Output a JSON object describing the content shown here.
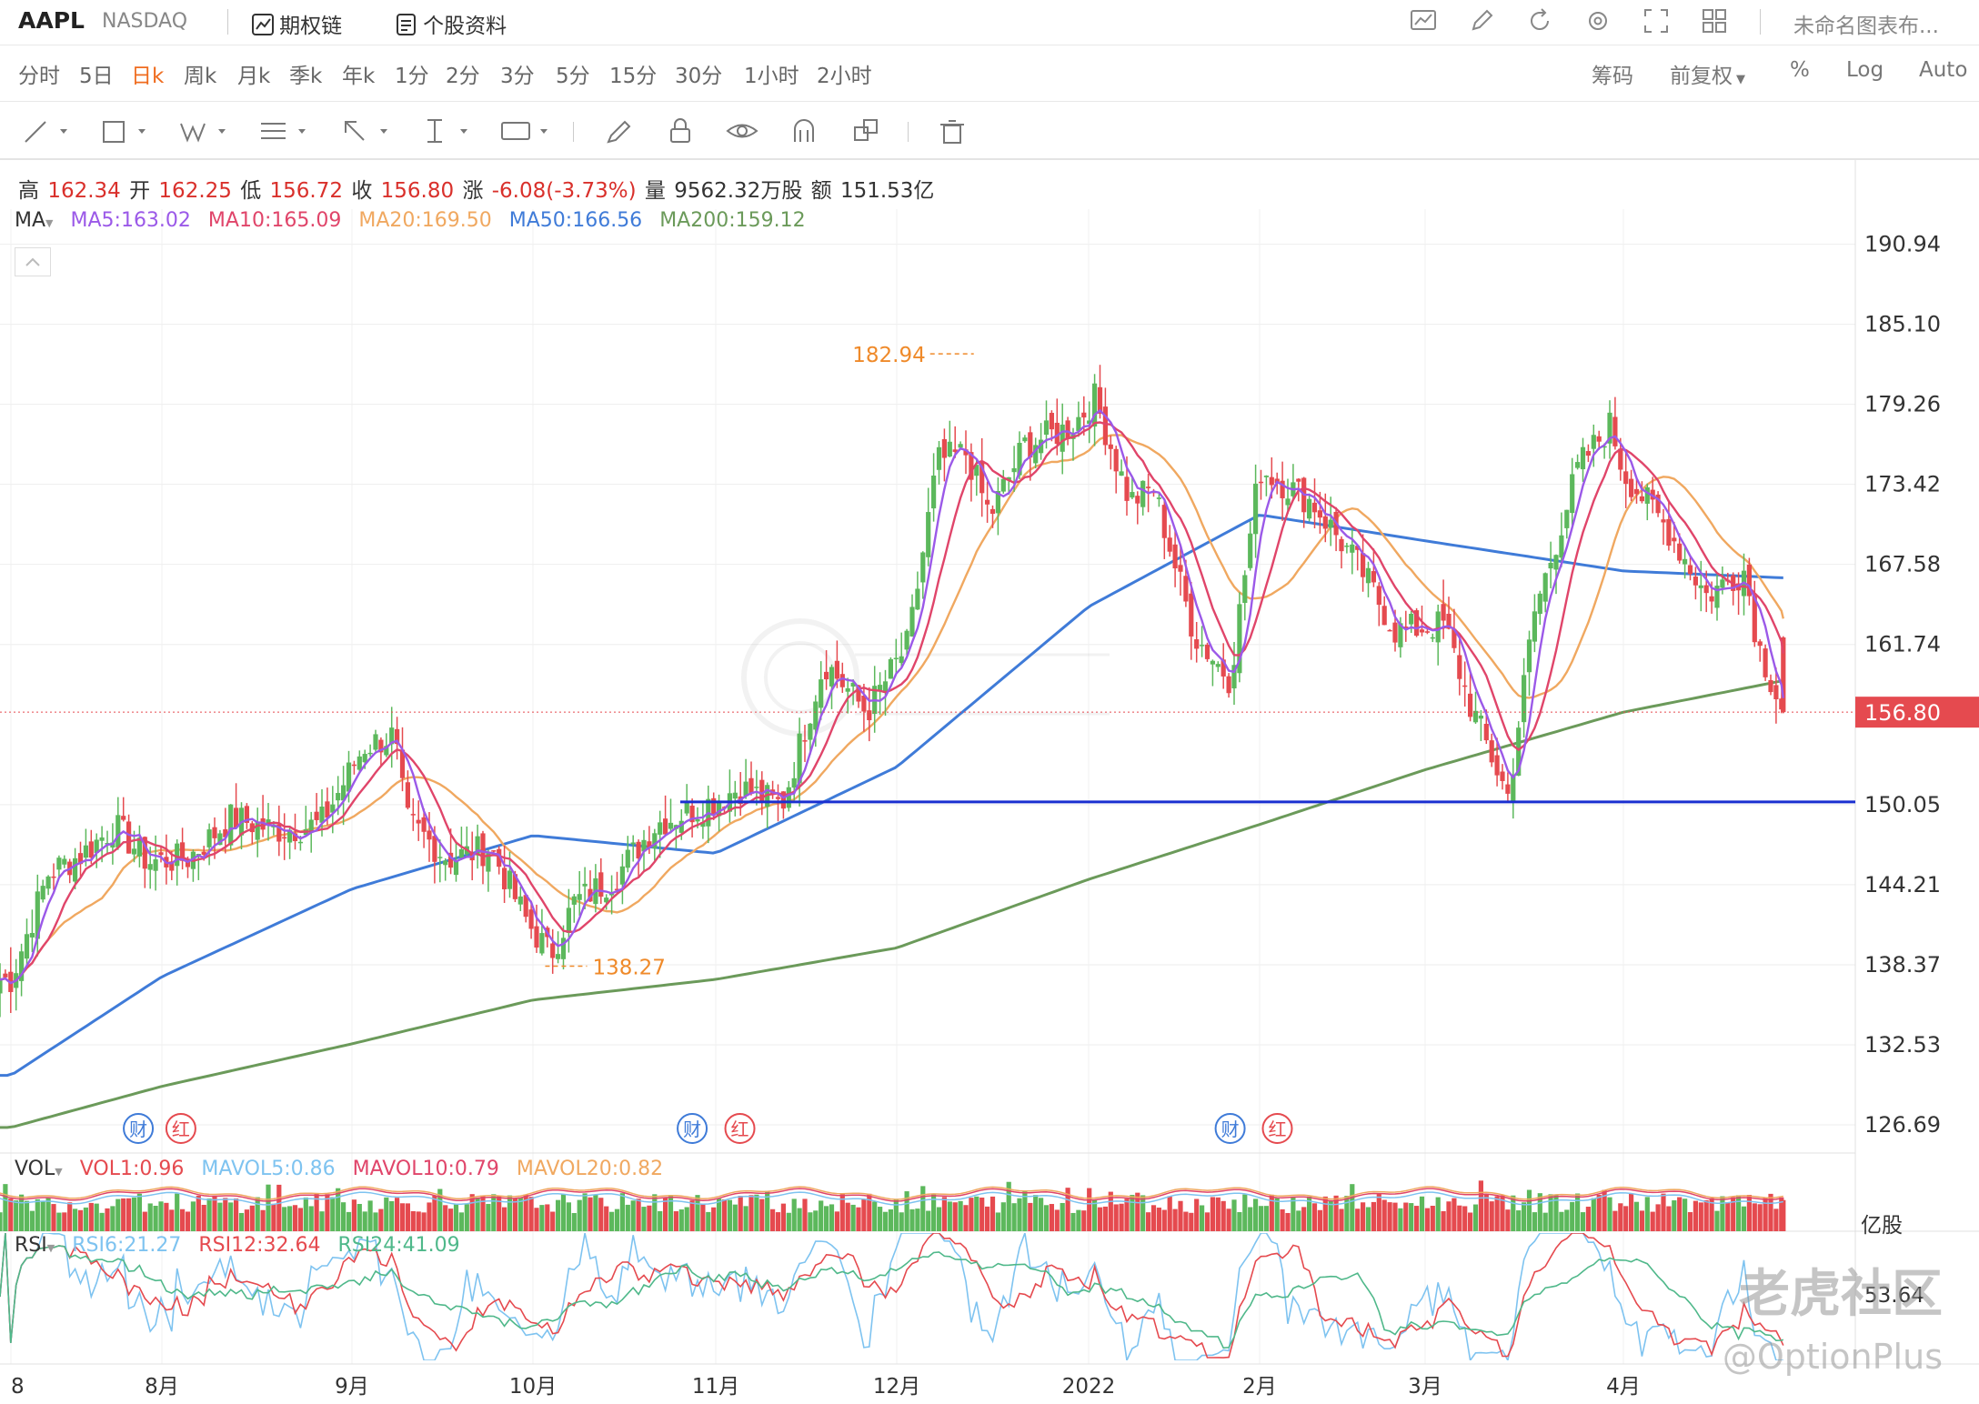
{
  "header": {
    "ticker": "AAPL",
    "exchange": "NASDAQ",
    "link_options": "期权链",
    "link_profile": "个股资料",
    "chart_name": "未命名图表布..."
  },
  "periods": [
    "分时",
    "5日",
    "日k",
    "周k",
    "月k",
    "季k",
    "年k",
    "1分",
    "2分",
    "3分",
    "5分",
    "15分",
    "30分",
    "1小时",
    "2小时"
  ],
  "active_period": "日k",
  "right_options": {
    "chips": "筹码",
    "adjust": "前复权",
    "percent": "%",
    "log": "Log",
    "auto": "Auto"
  },
  "ohlc": {
    "high_label": "高",
    "high": "162.34",
    "open_label": "开",
    "open": "162.25",
    "low_label": "低",
    "low": "156.72",
    "close_label": "收",
    "close": "156.80",
    "change_label": "涨",
    "change": "-6.08(-3.73%)",
    "volume_label": "量",
    "volume": "9562.32万股",
    "amount_label": "额",
    "amount": "151.53亿"
  },
  "ma_legend": {
    "title": "MA",
    "ma5": "MA5:163.02",
    "ma10": "MA10:165.09",
    "ma20": "MA20:169.50",
    "ma50": "MA50:166.56",
    "ma200": "MA200:159.12"
  },
  "vol_legend": {
    "title": "VOL",
    "vol1": "VOL1:0.96",
    "mavol5": "MAVOL5:0.86",
    "mavol10": "MAVOL10:0.79",
    "mavol20": "MAVOL20:0.82",
    "unit": "亿股"
  },
  "rsi_legend": {
    "title": "RSI",
    "rsi6": "RSI6:21.27",
    "rsi12": "RSI12:32.64",
    "rsi24": "RSI24:41.09",
    "axis_value": "53.64"
  },
  "watermarks": {
    "cn": "老虎社区",
    "handle": "@OptionPlus"
  },
  "colors": {
    "up": "#5cb85c",
    "down": "#e54a4f",
    "ma5": "#9b59e8",
    "ma10": "#e0456a",
    "ma20": "#f0a860",
    "ma50": "#3f7bd8",
    "ma200": "#6b9a5a",
    "hline": "#1a2fd0",
    "annot": "#ef8a2a",
    "last_price": "#e54a4f"
  },
  "event_markers": [
    {
      "date": "2021-07-28",
      "label": "财"
    },
    {
      "date": "2021-08-05",
      "label": "红"
    },
    {
      "date": "2021-10-28",
      "label": "财"
    },
    {
      "date": "2021-11-05",
      "label": "红"
    },
    {
      "date": "2022-01-27",
      "label": "财"
    },
    {
      "date": "2022-02-04",
      "label": "红"
    }
  ],
  "chart_data": {
    "type": "candlestick",
    "ylim": [
      124.5,
      193.5
    ],
    "y_ticks": [
      "190.94",
      "185.10",
      "179.26",
      "173.42",
      "167.58",
      "161.74",
      "156.80",
      "150.05",
      "144.21",
      "138.37",
      "132.53",
      "126.69"
    ],
    "x_ticks": [
      "8",
      "8月",
      "9月",
      "10月",
      "11月",
      "12月",
      "2022",
      "2月",
      "3月",
      "4月"
    ],
    "x_tick_dates": [
      "2021-07-01",
      "2021-08-02",
      "2021-09-01",
      "2021-10-01",
      "2021-11-01",
      "2021-12-01",
      "2022-01-03",
      "2022-02-01",
      "2022-03-01",
      "2022-04-01"
    ],
    "last_price": "156.80",
    "support_line": 150.25,
    "annotations": [
      {
        "date": "2021-12-13",
        "value": 182.94,
        "label": "182.94"
      },
      {
        "date": "2021-10-04",
        "value": 138.27,
        "label": "138.27"
      }
    ],
    "close": [
      {
        "date": "2021-07-01",
        "value": 137.3
      },
      {
        "date": "2021-07-09",
        "value": 145.1
      },
      {
        "date": "2021-07-16",
        "value": 146.4
      },
      {
        "date": "2021-07-23",
        "value": 148.5
      },
      {
        "date": "2021-07-30",
        "value": 145.9
      },
      {
        "date": "2021-08-06",
        "value": 146.1
      },
      {
        "date": "2021-08-13",
        "value": 149.1
      },
      {
        "date": "2021-08-20",
        "value": 148.2
      },
      {
        "date": "2021-08-27",
        "value": 148.6
      },
      {
        "date": "2021-09-03",
        "value": 154.3
      },
      {
        "date": "2021-09-08",
        "value": 155.1
      },
      {
        "date": "2021-09-10",
        "value": 148.9
      },
      {
        "date": "2021-09-17",
        "value": 146.1
      },
      {
        "date": "2021-09-24",
        "value": 146.9
      },
      {
        "date": "2021-09-30",
        "value": 141.5
      },
      {
        "date": "2021-10-04",
        "value": 139.1
      },
      {
        "date": "2021-10-08",
        "value": 142.9
      },
      {
        "date": "2021-10-15",
        "value": 144.8
      },
      {
        "date": "2021-10-22",
        "value": 148.7
      },
      {
        "date": "2021-10-29",
        "value": 149.8
      },
      {
        "date": "2021-11-05",
        "value": 151.3
      },
      {
        "date": "2021-11-12",
        "value": 150.0
      },
      {
        "date": "2021-11-19",
        "value": 160.5
      },
      {
        "date": "2021-11-26",
        "value": 156.8
      },
      {
        "date": "2021-12-03",
        "value": 161.8
      },
      {
        "date": "2021-12-08",
        "value": 175.1
      },
      {
        "date": "2021-12-13",
        "value": 175.7
      },
      {
        "date": "2021-12-17",
        "value": 171.1
      },
      {
        "date": "2021-12-23",
        "value": 176.3
      },
      {
        "date": "2021-12-31",
        "value": 177.6
      },
      {
        "date": "2022-01-04",
        "value": 179.7
      },
      {
        "date": "2022-01-10",
        "value": 172.2
      },
      {
        "date": "2022-01-14",
        "value": 173.1
      },
      {
        "date": "2022-01-21",
        "value": 162.4
      },
      {
        "date": "2022-01-27",
        "value": 159.2
      },
      {
        "date": "2022-02-01",
        "value": 174.6
      },
      {
        "date": "2022-02-10",
        "value": 172.1
      },
      {
        "date": "2022-02-18",
        "value": 167.3
      },
      {
        "date": "2022-02-24",
        "value": 162.7
      },
      {
        "date": "2022-03-04",
        "value": 163.2
      },
      {
        "date": "2022-03-08",
        "value": 157.4
      },
      {
        "date": "2022-03-14",
        "value": 150.6
      },
      {
        "date": "2022-03-18",
        "value": 163.9
      },
      {
        "date": "2022-03-25",
        "value": 174.7
      },
      {
        "date": "2022-03-30",
        "value": 177.8
      },
      {
        "date": "2022-04-01",
        "value": 174.3
      },
      {
        "date": "2022-04-08",
        "value": 170.1
      },
      {
        "date": "2022-04-14",
        "value": 165.3
      },
      {
        "date": "2022-04-20",
        "value": 167.2
      },
      {
        "date": "2022-04-22",
        "value": 161.8
      },
      {
        "date": "2022-04-26",
        "value": 156.8
      }
    ],
    "ma200": [
      {
        "date": "2021-07-01",
        "value": 126.5
      },
      {
        "date": "2021-08-02",
        "value": 129.5
      },
      {
        "date": "2021-09-01",
        "value": 132.6
      },
      {
        "date": "2021-10-01",
        "value": 135.8
      },
      {
        "date": "2021-11-01",
        "value": 137.3
      },
      {
        "date": "2021-12-01",
        "value": 139.6
      },
      {
        "date": "2022-01-03",
        "value": 144.6
      },
      {
        "date": "2022-02-01",
        "value": 148.6
      },
      {
        "date": "2022-03-01",
        "value": 152.6
      },
      {
        "date": "2022-04-01",
        "value": 156.8
      },
      {
        "date": "2022-04-26",
        "value": 159.1
      }
    ],
    "ma50": [
      {
        "date": "2021-07-01",
        "value": 130.3
      },
      {
        "date": "2021-08-02",
        "value": 137.5
      },
      {
        "date": "2021-09-01",
        "value": 143.9
      },
      {
        "date": "2021-10-01",
        "value": 147.8
      },
      {
        "date": "2021-11-01",
        "value": 146.5
      },
      {
        "date": "2021-12-01",
        "value": 152.8
      },
      {
        "date": "2022-01-03",
        "value": 164.5
      },
      {
        "date": "2022-02-01",
        "value": 171.2
      },
      {
        "date": "2022-03-01",
        "value": 169.3
      },
      {
        "date": "2022-04-01",
        "value": 167.1
      },
      {
        "date": "2022-04-26",
        "value": 166.6
      }
    ]
  }
}
